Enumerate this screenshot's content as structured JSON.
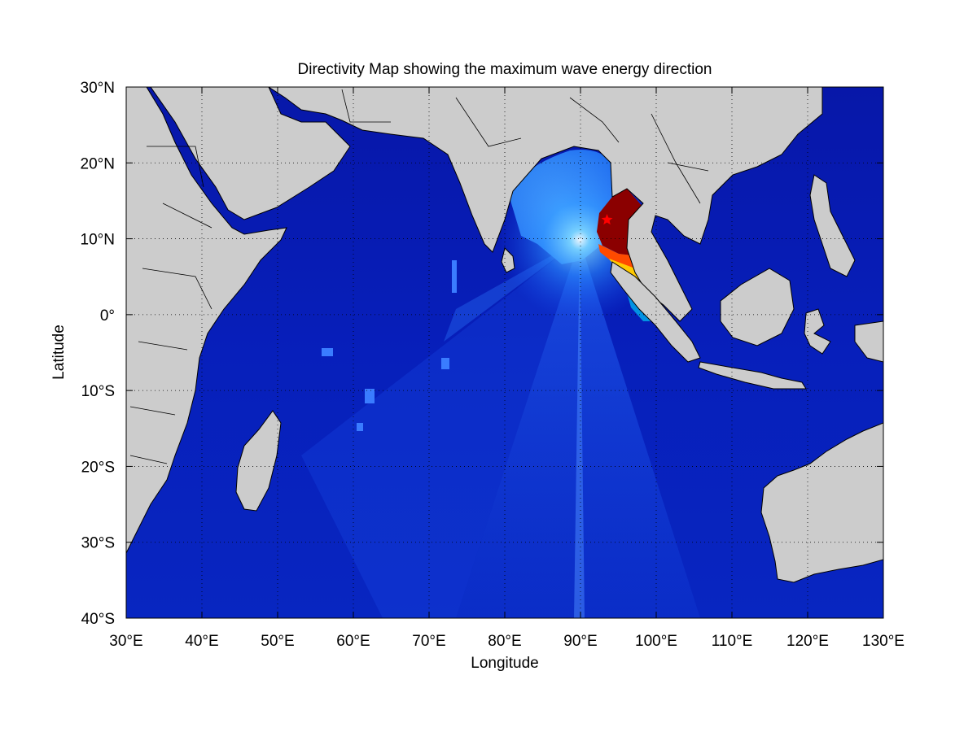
{
  "figure": {
    "title": "Directivity Map showing the maximum wave energy direction",
    "xlabel": "Longitude",
    "ylabel": "Latitude"
  },
  "map": {
    "projection": "equirectangular",
    "lon_range": [
      30,
      130
    ],
    "lat_range": [
      -40,
      30
    ],
    "x_ticks": [
      {
        "value": 30,
        "label": "30°E"
      },
      {
        "value": 40,
        "label": "40°E"
      },
      {
        "value": 50,
        "label": "50°E"
      },
      {
        "value": 60,
        "label": "60°E"
      },
      {
        "value": 70,
        "label": "70°E"
      },
      {
        "value": 80,
        "label": "80°E"
      },
      {
        "value": 90,
        "label": "90°E"
      },
      {
        "value": 100,
        "label": "100°E"
      },
      {
        "value": 110,
        "label": "110°E"
      },
      {
        "value": 120,
        "label": "120°E"
      },
      {
        "value": 130,
        "label": "130°E"
      }
    ],
    "y_ticks": [
      {
        "value": 30,
        "label": "30°N"
      },
      {
        "value": 20,
        "label": "20°N"
      },
      {
        "value": 10,
        "label": "10°N"
      },
      {
        "value": 0,
        "label": "0°"
      },
      {
        "value": -10,
        "label": "10°S"
      },
      {
        "value": -20,
        "label": "20°S"
      },
      {
        "value": -30,
        "label": "30°S"
      },
      {
        "value": -40,
        "label": "40°S"
      }
    ],
    "grid": "dotted",
    "colors": {
      "ocean_deep": "#00008c",
      "ocean_mid": "#0a2fd6",
      "beam": "#1c5cf0",
      "land": "#cccccc",
      "high_energy": "#8b0000",
      "mid_energy": "#ffd800",
      "epicenter": "#ff0000"
    },
    "epicenter": {
      "lon": 93.5,
      "lat": 12.5,
      "marker": "star-icon"
    }
  }
}
